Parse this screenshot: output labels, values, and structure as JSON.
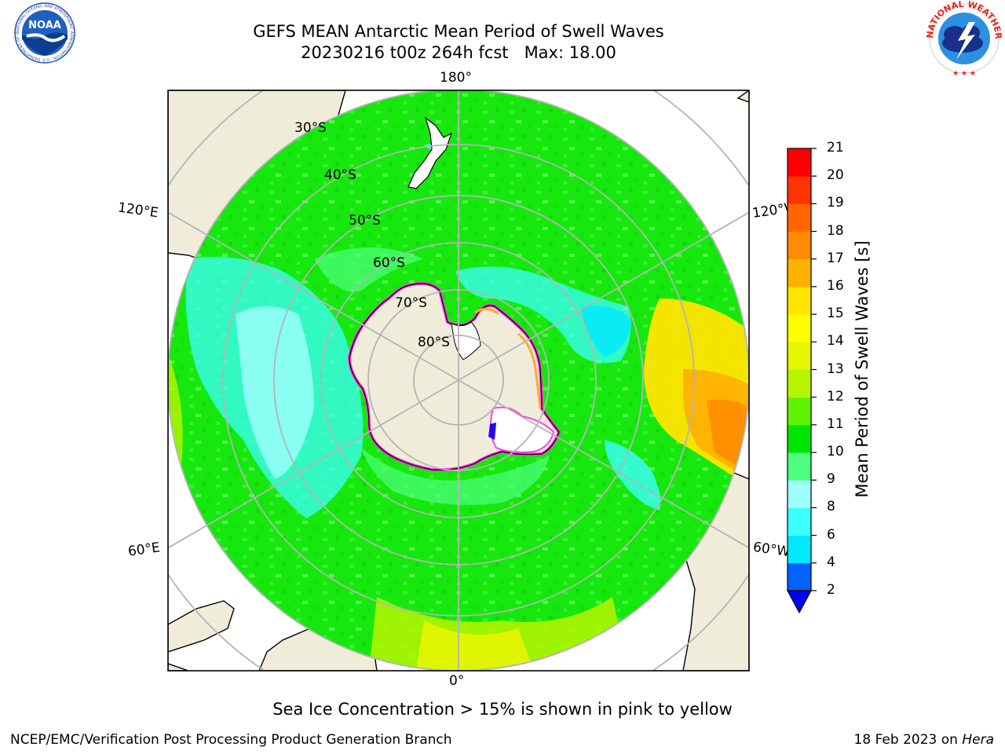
{
  "header": {
    "title_line1": "GEFS MEAN Antarctic Mean Period of Swell Waves",
    "title_line2": "20230216 t00z 264h fcst   Max: 18.00",
    "noaa_logo_text": "NOAA",
    "noaa_ring_text": "NATIONAL OCEANIC AND ATMOSPHERIC ADMINISTRATION · U.S. DEPARTMENT OF COMMERCE",
    "nws_ring_text": "NATIONAL WEATHER SERVICE"
  },
  "map": {
    "projection": "south polar stereographic",
    "longitude_labels": {
      "top": "180°",
      "bottom": "0°",
      "upper_left": "120°E",
      "lower_left": "60°E",
      "upper_right": "120°W",
      "lower_right": "60°W"
    },
    "latitude_labels": [
      "30°S",
      "40°S",
      "50°S",
      "60°S",
      "70°S",
      "80°S"
    ],
    "colors": {
      "land": "#efedda",
      "grid": "#b4b4b4",
      "dominant_swell": "#16e80e",
      "ice_edge": "#ff22dd"
    }
  },
  "colorbar": {
    "label": "Mean Period of Swell Waves [s]",
    "ticks": [
      "2",
      "4",
      "6",
      "8",
      "9",
      "10",
      "11",
      "12",
      "13",
      "14",
      "15",
      "16",
      "17",
      "18",
      "19",
      "20",
      "21"
    ],
    "colors": [
      "#0062ff",
      "#00e8ff",
      "#3cffff",
      "#a0ffff",
      "#4dff7d",
      "#00e600",
      "#5ef200",
      "#b6f500",
      "#e6f500",
      "#ffff00",
      "#ffe500",
      "#ffb200",
      "#ff8c00",
      "#ff6600",
      "#ff3300",
      "#ff0000"
    ],
    "under_color": "#0000ff"
  },
  "footer": {
    "note": "Sea Ice Concentration > 15% is shown in pink to yellow",
    "left": "NCEP/EMC/Verification Post Processing Product Generation Branch",
    "right_date": "18 Feb 2023 on ",
    "right_host": "Hera"
  }
}
